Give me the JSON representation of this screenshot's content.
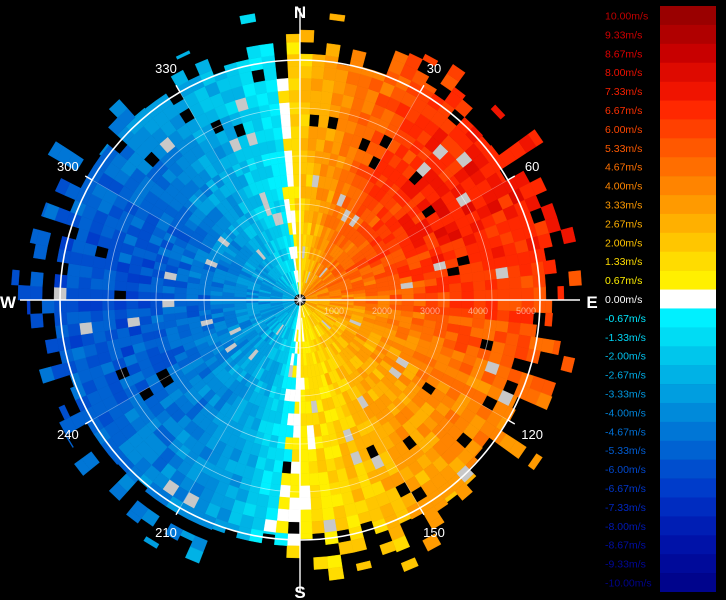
{
  "chart_data": {
    "type": "heatmap",
    "subtype": "polar-ppi-radial-velocity",
    "compass": {
      "north": "N",
      "east": "E",
      "south": "S",
      "west": "W"
    },
    "azimuth_labels": [
      "30",
      "60",
      "120",
      "150",
      "210",
      "240",
      "300",
      "330"
    ],
    "range_labels": [
      "1000",
      "2000",
      "3000",
      "4000",
      "5000"
    ],
    "range_max": 5000,
    "sector_velocity_by_azimuth": [
      {
        "az": 0,
        "v": 2.0
      },
      {
        "az": 30,
        "v": 6.0
      },
      {
        "az": 60,
        "v": 7.3
      },
      {
        "az": 90,
        "v": 6.0
      },
      {
        "az": 120,
        "v": 4.0
      },
      {
        "az": 150,
        "v": 2.7
      },
      {
        "az": 180,
        "v": 0.7
      },
      {
        "az": 200,
        "v": -3.3
      },
      {
        "az": 240,
        "v": -5.3
      },
      {
        "az": 270,
        "v": -6.0
      },
      {
        "az": 300,
        "v": -5.3
      },
      {
        "az": 330,
        "v": -3.3
      },
      {
        "az": 350,
        "v": -1.3
      },
      {
        "az": 360,
        "v": 2.0
      }
    ],
    "legend": {
      "unit": "m/s",
      "entries": [
        {
          "label": "10.00m/s",
          "color": "#9a0000",
          "text_color": "#c00000"
        },
        {
          "label": "9.33m/s",
          "color": "#b00000",
          "text_color": "#d00000"
        },
        {
          "label": "8.67m/s",
          "color": "#c80000",
          "text_color": "#e00000"
        },
        {
          "label": "8.00m/s",
          "color": "#de0a00",
          "text_color": "#ee1000"
        },
        {
          "label": "7.33m/s",
          "color": "#f01400",
          "text_color": "#f52000"
        },
        {
          "label": "6.67m/s",
          "color": "#ff2800",
          "text_color": "#ff3000"
        },
        {
          "label": "6.00m/s",
          "color": "#ff4000",
          "text_color": "#ff4600"
        },
        {
          "label": "5.33m/s",
          "color": "#ff5800",
          "text_color": "#ff5a00"
        },
        {
          "label": "4.67m/s",
          "color": "#ff6e00",
          "text_color": "#ff7000"
        },
        {
          "label": "4.00m/s",
          "color": "#ff8400",
          "text_color": "#ff8600"
        },
        {
          "label": "3.33m/s",
          "color": "#ff9a00",
          "text_color": "#ff9a00"
        },
        {
          "label": "2.67m/s",
          "color": "#ffb000",
          "text_color": "#ffb000"
        },
        {
          "label": "2.00m/s",
          "color": "#ffc600",
          "text_color": "#ffc400"
        },
        {
          "label": "1.33m/s",
          "color": "#ffdc00",
          "text_color": "#ffdc00"
        },
        {
          "label": "0.67m/s",
          "color": "#fff000",
          "text_color": "#ffef00"
        },
        {
          "label": "0.00m/s",
          "color": "#ffffff",
          "text_color": "#ffffff"
        },
        {
          "label": "-0.67m/s",
          "color": "#00f0ff",
          "text_color": "#00e8ff"
        },
        {
          "label": "-1.33m/s",
          "color": "#00dcf4",
          "text_color": "#00d4f4"
        },
        {
          "label": "-2.00m/s",
          "color": "#00c6ec",
          "text_color": "#00c0ec"
        },
        {
          "label": "-2.67m/s",
          "color": "#00b2e6",
          "text_color": "#00ace6"
        },
        {
          "label": "-3.33m/s",
          "color": "#009ee0",
          "text_color": "#0098e0"
        },
        {
          "label": "-4.00m/s",
          "color": "#008ada",
          "text_color": "#0084da"
        },
        {
          "label": "-4.67m/s",
          "color": "#0076d6",
          "text_color": "#0070d6"
        },
        {
          "label": "-5.33m/s",
          "color": "#0062d2",
          "text_color": "#005cd2"
        },
        {
          "label": "-6.00m/s",
          "color": "#004ece",
          "text_color": "#0048ce"
        },
        {
          "label": "-6.67m/s",
          "color": "#003cca",
          "text_color": "#0036ca"
        },
        {
          "label": "-7.33m/s",
          "color": "#002cc0",
          "text_color": "#0026c0"
        },
        {
          "label": "-8.00m/s",
          "color": "#001eb4",
          "text_color": "#0018b4"
        },
        {
          "label": "-8.67m/s",
          "color": "#0012a8",
          "text_color": "#000ea8"
        },
        {
          "label": "-9.33m/s",
          "color": "#000a9a",
          "text_color": "#00089a"
        },
        {
          "label": "-10.00m/s",
          "color": "#00048c",
          "text_color": "#00048c"
        }
      ]
    }
  }
}
